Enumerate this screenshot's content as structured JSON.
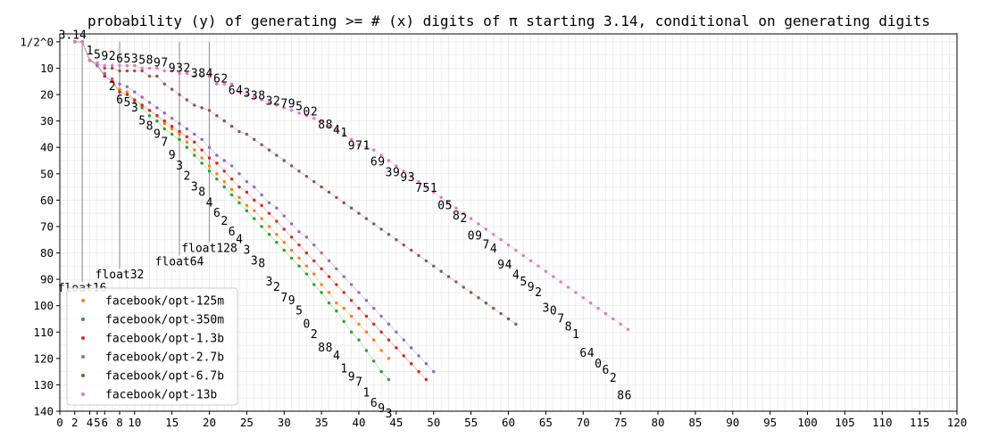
{
  "chart_data": {
    "type": "scatter",
    "title": "probability (y) of generating >= # (x) digits of π starting 3.14, conditional on generating digits",
    "xlabel": "",
    "ylabel": "",
    "xlim": [
      0,
      120
    ],
    "ylim": [
      140,
      -3
    ],
    "grid": true,
    "legend_position": "bottom-left",
    "x_ticks_major": [
      0,
      5,
      10,
      15,
      20,
      25,
      30,
      35,
      40,
      45,
      50,
      55,
      60,
      65,
      70,
      75,
      80,
      85,
      90,
      95,
      100,
      105,
      110,
      115,
      120
    ],
    "x_ticks_minor": [
      2,
      4,
      6,
      8
    ],
    "y_ticks": [
      0,
      10,
      20,
      30,
      40,
      50,
      60,
      70,
      80,
      90,
      100,
      110,
      120,
      130,
      140
    ],
    "y_tick_labels": [
      "1/2^0",
      "10",
      "20",
      "30",
      "40",
      "50",
      "60",
      "70",
      "80",
      "90",
      "100",
      "110",
      "120",
      "130",
      "140"
    ],
    "float_markers": [
      {
        "label": "float16",
        "x": 3,
        "label_y": 93
      },
      {
        "label": "float32",
        "x": 8,
        "label_y": 88
      },
      {
        "label": "float64",
        "x": 16,
        "label_y": 83
      },
      {
        "label": "float128",
        "x": 20,
        "label_y": 78
      }
    ],
    "series": [
      {
        "name": "facebook/opt-125m",
        "color": "#ff7f0e",
        "x": [
          2,
          3,
          4,
          5,
          6,
          7,
          8,
          9,
          10,
          11,
          12,
          13,
          14,
          15,
          16,
          17,
          18,
          19,
          20,
          21,
          22,
          23,
          24,
          25,
          26,
          27,
          28,
          29,
          30,
          31,
          32,
          33,
          34,
          35,
          36,
          37,
          38,
          39,
          40,
          41,
          42,
          43,
          44
        ],
        "y": [
          0,
          0,
          7,
          9,
          13,
          15,
          18,
          19,
          22,
          24,
          26,
          28,
          31,
          33,
          35,
          38,
          41,
          44,
          47,
          50,
          53,
          56,
          59,
          62,
          64,
          67,
          70,
          73,
          76,
          79,
          82,
          85,
          88,
          92,
          95,
          99,
          101,
          104,
          107,
          110,
          113,
          117,
          120
        ]
      },
      {
        "name": "facebook/opt-350m",
        "color": "#2ca02c",
        "x": [
          2,
          3,
          4,
          5,
          6,
          7,
          8,
          9,
          10,
          11,
          12,
          13,
          14,
          15,
          16,
          17,
          18,
          19,
          20,
          21,
          22,
          23,
          24,
          25,
          26,
          27,
          28,
          29,
          30,
          31,
          32,
          33,
          34,
          35,
          36,
          37,
          38,
          39,
          40,
          41,
          42,
          43,
          44
        ],
        "y": [
          0,
          0,
          7,
          9,
          13,
          15,
          19,
          20,
          23,
          25,
          28,
          30,
          33,
          35,
          37,
          40,
          43,
          46,
          49,
          52,
          55,
          58,
          61,
          64,
          67,
          70,
          73,
          76,
          79,
          82,
          85,
          88,
          92,
          95,
          99,
          102,
          106,
          110,
          113,
          117,
          121,
          125,
          128
        ]
      },
      {
        "name": "facebook/opt-1.3b",
        "color": "#d62728",
        "x": [
          2,
          3,
          4,
          5,
          6,
          7,
          8,
          9,
          10,
          11,
          12,
          13,
          14,
          15,
          16,
          17,
          18,
          19,
          20,
          21,
          22,
          23,
          24,
          25,
          26,
          27,
          28,
          29,
          30,
          31,
          32,
          33,
          34,
          35,
          36,
          37,
          38,
          39,
          40,
          41,
          42,
          43,
          44,
          45,
          46,
          47,
          48,
          49
        ],
        "y": [
          0,
          0,
          7,
          9,
          13,
          15,
          19,
          20,
          22,
          24,
          26,
          28,
          30,
          32,
          34,
          36,
          38,
          41,
          44,
          46,
          49,
          52,
          55,
          57,
          60,
          62,
          65,
          68,
          71,
          74,
          77,
          80,
          83,
          86,
          89,
          92,
          95,
          98,
          101,
          104,
          107,
          110,
          113,
          116,
          119,
          122,
          125,
          128
        ]
      },
      {
        "name": "facebook/opt-2.7b",
        "color": "#9467bd",
        "x": [
          2,
          3,
          4,
          5,
          6,
          7,
          8,
          9,
          10,
          11,
          12,
          13,
          14,
          15,
          16,
          17,
          18,
          19,
          20,
          21,
          22,
          23,
          24,
          25,
          26,
          27,
          28,
          29,
          30,
          31,
          32,
          33,
          34,
          35,
          36,
          37,
          38,
          39,
          40,
          41,
          42,
          43,
          44,
          45,
          46,
          47,
          48,
          49,
          50
        ],
        "y": [
          0,
          0,
          7,
          9,
          12,
          14,
          16,
          17,
          19,
          21,
          23,
          25,
          27,
          29,
          31,
          33,
          35,
          37,
          40,
          43,
          45,
          47,
          50,
          53,
          55,
          58,
          61,
          63,
          66,
          69,
          72,
          74,
          77,
          80,
          83,
          86,
          89,
          92,
          95,
          98,
          101,
          104,
          107,
          110,
          113,
          116,
          119,
          122,
          125
        ]
      },
      {
        "name": "facebook/opt-6.7b",
        "color": "#8c564b",
        "x": [
          2,
          3,
          4,
          5,
          6,
          7,
          8,
          9,
          10,
          11,
          12,
          13,
          14,
          15,
          16,
          17,
          18,
          19,
          20,
          21,
          22,
          23,
          24,
          25,
          26,
          27,
          28,
          29,
          30,
          31,
          32,
          33,
          34,
          35,
          36,
          37,
          38,
          39,
          40,
          41,
          42,
          43,
          44,
          45,
          46,
          47,
          48,
          49,
          50,
          51,
          52,
          53,
          54,
          55,
          56,
          57,
          58,
          59,
          60,
          61
        ],
        "y": [
          0,
          0,
          7,
          8,
          10,
          10,
          11,
          11,
          11,
          11,
          13,
          13,
          16,
          18,
          20,
          22,
          24,
          25,
          26,
          28,
          30,
          32,
          34,
          35,
          37,
          39,
          41,
          43,
          45,
          47,
          49,
          51,
          53,
          55,
          57,
          59,
          61,
          63,
          65,
          67,
          69,
          71,
          73,
          75,
          77,
          79,
          81,
          83,
          85,
          87,
          89,
          91,
          93,
          95,
          97,
          99,
          101,
          103,
          105,
          107
        ]
      },
      {
        "name": "facebook/opt-13b",
        "color": "#e377c2",
        "x": [
          2,
          3,
          4,
          5,
          6,
          7,
          8,
          9,
          10,
          11,
          12,
          13,
          14,
          15,
          16,
          17,
          18,
          19,
          20,
          21,
          22,
          23,
          24,
          25,
          26,
          27,
          28,
          29,
          30,
          31,
          32,
          33,
          34,
          35,
          36,
          37,
          38,
          39,
          40,
          41,
          42,
          43,
          44,
          45,
          46,
          47,
          48,
          49,
          50,
          51,
          52,
          53,
          54,
          55,
          56,
          57,
          58,
          59,
          60,
          61,
          62,
          63,
          64,
          65,
          66,
          67,
          68,
          69,
          70,
          71,
          72,
          73,
          74,
          75,
          76
        ],
        "y": [
          0,
          0,
          7,
          8,
          9,
          9,
          9,
          9,
          9,
          10,
          10,
          10,
          11,
          11,
          12,
          12,
          13,
          13,
          13,
          16,
          16,
          16,
          19,
          20,
          21,
          22,
          23,
          24,
          25,
          26,
          27,
          28,
          29,
          30,
          32,
          33,
          35,
          37,
          39,
          40,
          41,
          43,
          45,
          47,
          49,
          51,
          53,
          55,
          57,
          59,
          61,
          63,
          65,
          67,
          69,
          71,
          73,
          75,
          77,
          79,
          81,
          83,
          85,
          87,
          89,
          91,
          93,
          95,
          97,
          99,
          101,
          103,
          105,
          107,
          109
        ]
      }
    ],
    "annotations": [
      {
        "text": "3.14",
        "x": 1.7,
        "y": -2.5
      },
      {
        "text": "1",
        "x": 4,
        "y": 3.5
      },
      {
        "text": "5",
        "x": 5,
        "y": 5
      },
      {
        "text": "9",
        "x": 6,
        "y": 5.5
      },
      {
        "text": "2",
        "x": 7,
        "y": 5.5
      },
      {
        "text": "6",
        "x": 8,
        "y": 6.5
      },
      {
        "text": "5",
        "x": 9,
        "y": 6.5
      },
      {
        "text": "3",
        "x": 10,
        "y": 6.5
      },
      {
        "text": "5",
        "x": 11,
        "y": 7
      },
      {
        "text": "8",
        "x": 12,
        "y": 7
      },
      {
        "text": "9",
        "x": 13,
        "y": 8
      },
      {
        "text": "7",
        "x": 14,
        "y": 8
      },
      {
        "text": "9",
        "x": 15,
        "y": 10
      },
      {
        "text": "3",
        "x": 16,
        "y": 10
      },
      {
        "text": "2",
        "x": 17,
        "y": 10
      },
      {
        "text": "3",
        "x": 18,
        "y": 12
      },
      {
        "text": "8",
        "x": 19,
        "y": 12
      },
      {
        "text": "4",
        "x": 20,
        "y": 12
      },
      {
        "text": "6",
        "x": 21,
        "y": 14
      },
      {
        "text": "2",
        "x": 22,
        "y": 14
      },
      {
        "text": "6",
        "x": 23,
        "y": 18.5
      },
      {
        "text": "4",
        "x": 24,
        "y": 18.5
      },
      {
        "text": "3",
        "x": 25,
        "y": 19.5
      },
      {
        "text": "3",
        "x": 26,
        "y": 20.5
      },
      {
        "text": "8",
        "x": 27,
        "y": 20.5
      },
      {
        "text": "3",
        "x": 28,
        "y": 22.5
      },
      {
        "text": "2",
        "x": 29,
        "y": 22.5
      },
      {
        "text": "7",
        "x": 30,
        "y": 23.5
      },
      {
        "text": "9",
        "x": 31,
        "y": 23.5
      },
      {
        "text": "5",
        "x": 32,
        "y": 24.5
      },
      {
        "text": "0",
        "x": 33,
        "y": 26.5
      },
      {
        "text": "2",
        "x": 34,
        "y": 26.5
      },
      {
        "text": "8",
        "x": 35,
        "y": 31.5
      },
      {
        "text": "8",
        "x": 36,
        "y": 31.5
      },
      {
        "text": "4",
        "x": 37,
        "y": 33.5
      },
      {
        "text": "1",
        "x": 38,
        "y": 34.5
      },
      {
        "text": "9",
        "x": 39,
        "y": 39.5
      },
      {
        "text": "7",
        "x": 40,
        "y": 39.5
      },
      {
        "text": "1",
        "x": 41,
        "y": 39.5
      },
      {
        "text": "6",
        "x": 42,
        "y": 45.5
      },
      {
        "text": "9",
        "x": 43,
        "y": 45.5
      },
      {
        "text": "3",
        "x": 44,
        "y": 49.5
      },
      {
        "text": "9",
        "x": 45,
        "y": 49.5
      },
      {
        "text": "9",
        "x": 46,
        "y": 51.5
      },
      {
        "text": "3",
        "x": 47,
        "y": 51.5
      },
      {
        "text": "7",
        "x": 48,
        "y": 55.5
      },
      {
        "text": "5",
        "x": 49,
        "y": 55.5
      },
      {
        "text": "1",
        "x": 50,
        "y": 55.5
      },
      {
        "text": "0",
        "x": 51,
        "y": 62
      },
      {
        "text": "5",
        "x": 52,
        "y": 62
      },
      {
        "text": "8",
        "x": 53,
        "y": 66
      },
      {
        "text": "2",
        "x": 54,
        "y": 67
      },
      {
        "text": "0",
        "x": 55,
        "y": 73.5
      },
      {
        "text": "9",
        "x": 56,
        "y": 73.5
      },
      {
        "text": "7",
        "x": 57,
        "y": 77
      },
      {
        "text": "4",
        "x": 58,
        "y": 78.5
      },
      {
        "text": "9",
        "x": 59,
        "y": 84.5
      },
      {
        "text": "4",
        "x": 60,
        "y": 84.5
      },
      {
        "text": "4",
        "x": 61,
        "y": 88.5
      },
      {
        "text": "5",
        "x": 62,
        "y": 91
      },
      {
        "text": "9",
        "x": 63,
        "y": 93
      },
      {
        "text": "2",
        "x": 64,
        "y": 95
      },
      {
        "text": "3",
        "x": 65,
        "y": 101
      },
      {
        "text": "0",
        "x": 66,
        "y": 102
      },
      {
        "text": "7",
        "x": 67,
        "y": 105
      },
      {
        "text": "8",
        "x": 68,
        "y": 108
      },
      {
        "text": "1",
        "x": 69,
        "y": 111
      },
      {
        "text": "6",
        "x": 70,
        "y": 118
      },
      {
        "text": "4",
        "x": 71,
        "y": 118
      },
      {
        "text": "0",
        "x": 72,
        "y": 122
      },
      {
        "text": "6",
        "x": 73,
        "y": 124.5
      },
      {
        "text": "2",
        "x": 74,
        "y": 127.5
      },
      {
        "text": "8",
        "x": 75,
        "y": 134
      },
      {
        "text": "6",
        "x": 76,
        "y": 134
      },
      {
        "text": "2",
        "x": 7,
        "y": 17
      },
      {
        "text": "6",
        "x": 8,
        "y": 22
      },
      {
        "text": "5",
        "x": 9,
        "y": 23
      },
      {
        "text": "3",
        "x": 10,
        "y": 25
      },
      {
        "text": "5",
        "x": 11,
        "y": 30
      },
      {
        "text": "8",
        "x": 12,
        "y": 32
      },
      {
        "text": "9",
        "x": 13,
        "y": 35
      },
      {
        "text": "7",
        "x": 14,
        "y": 38
      },
      {
        "text": "9",
        "x": 15,
        "y": 43
      },
      {
        "text": "3",
        "x": 16,
        "y": 47
      },
      {
        "text": "2",
        "x": 17,
        "y": 51
      },
      {
        "text": "3",
        "x": 18,
        "y": 55
      },
      {
        "text": "8",
        "x": 19,
        "y": 57
      },
      {
        "text": "4",
        "x": 20,
        "y": 61
      },
      {
        "text": "6",
        "x": 21,
        "y": 65
      },
      {
        "text": "2",
        "x": 22,
        "y": 68
      },
      {
        "text": "6",
        "x": 23,
        "y": 72
      },
      {
        "text": "4",
        "x": 24,
        "y": 75
      },
      {
        "text": "3",
        "x": 25,
        "y": 79
      },
      {
        "text": "3",
        "x": 26,
        "y": 83
      },
      {
        "text": "8",
        "x": 27,
        "y": 84
      },
      {
        "text": "3",
        "x": 28,
        "y": 91
      },
      {
        "text": "2",
        "x": 29,
        "y": 93
      },
      {
        "text": "7",
        "x": 30,
        "y": 97
      },
      {
        "text": "9",
        "x": 31,
        "y": 98
      },
      {
        "text": "5",
        "x": 32,
        "y": 102
      },
      {
        "text": "0",
        "x": 33,
        "y": 107
      },
      {
        "text": "2",
        "x": 34,
        "y": 111
      },
      {
        "text": "8",
        "x": 35,
        "y": 116
      },
      {
        "text": "8",
        "x": 36,
        "y": 116
      },
      {
        "text": "4",
        "x": 37,
        "y": 119
      },
      {
        "text": "1",
        "x": 38,
        "y": 124
      },
      {
        "text": "9",
        "x": 39,
        "y": 127
      },
      {
        "text": "7",
        "x": 40,
        "y": 129
      },
      {
        "text": "1",
        "x": 41,
        "y": 133
      },
      {
        "text": "6",
        "x": 42,
        "y": 137
      },
      {
        "text": "9",
        "x": 43,
        "y": 139
      },
      {
        "text": "3",
        "x": 44,
        "y": 141
      }
    ]
  }
}
